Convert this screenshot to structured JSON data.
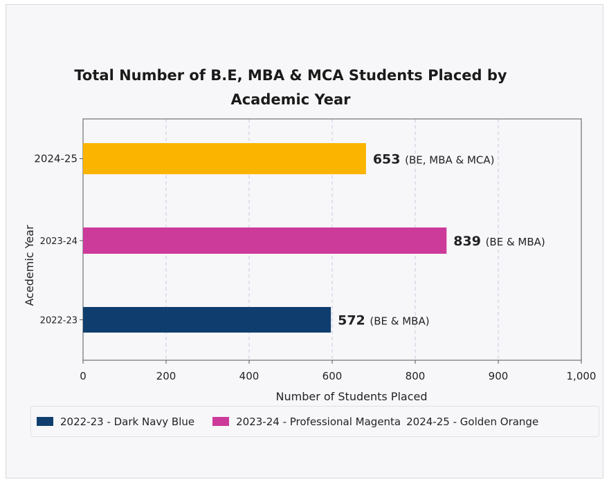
{
  "chart_data": {
    "type": "bar",
    "orientation": "horizontal",
    "title": "Total Number of B.E, MBA & MCA Students Placed by\nAcademic Year",
    "xlabel": "Number of Students Placed",
    "ylabel": "Acedemic Year",
    "categories": [
      "2022-23",
      "2023-24",
      "2024-25"
    ],
    "values": [
      572,
      839,
      653
    ],
    "data_labels": [
      {
        "value": "572",
        "note": "(BE & MBA)"
      },
      {
        "value": "839",
        "note": "(BE & MBA)"
      },
      {
        "value": "653",
        "note": "(BE, MBA & MCA)"
      }
    ],
    "colors": [
      "#0f3e6e",
      "#cc3a9a",
      "#fbb400"
    ],
    "xticks": [
      "0",
      "200",
      "400",
      "600",
      "800",
      "900",
      "1,000"
    ],
    "grid": "vertical dashed",
    "legend_position": "bottom",
    "legend": [
      "2022-23 - Dark Navy Blue",
      "2023-24 - Professional Magenta",
      "2024-25 - Golden Orange"
    ]
  }
}
